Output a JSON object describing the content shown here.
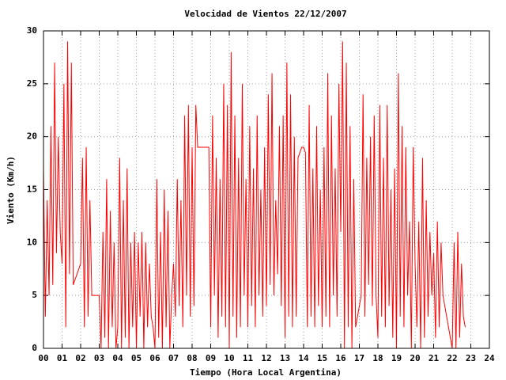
{
  "chart_data": {
    "type": "line",
    "title": "Velocidad de Vientos 22/12/2007",
    "x_label": "Tiempo (Hora Local Argentina)",
    "y_label": "Viento (Km/h)",
    "color": "#ff0000",
    "grid": true,
    "xlim": [
      0,
      24
    ],
    "ylim": [
      0,
      30
    ],
    "xticks": [
      {
        "value": 0,
        "label": "00"
      },
      {
        "value": 1,
        "label": "01"
      },
      {
        "value": 2,
        "label": "02"
      },
      {
        "value": 3,
        "label": "03"
      },
      {
        "value": 4,
        "label": "04"
      },
      {
        "value": 5,
        "label": "05"
      },
      {
        "value": 6,
        "label": "06"
      },
      {
        "value": 7,
        "label": "07"
      },
      {
        "value": 8,
        "label": "08"
      },
      {
        "value": 9,
        "label": "09"
      },
      10,
      11,
      12,
      13,
      14,
      15,
      16,
      17,
      18,
      19,
      20,
      21,
      22,
      23,
      24
    ],
    "yticks": [
      0,
      5,
      10,
      15,
      20,
      25,
      30
    ],
    "x": [
      0,
      0.1,
      0.2,
      0.3,
      0.4,
      0.5,
      0.6,
      0.7,
      0.8,
      0.9,
      1,
      1.1,
      1.2,
      1.3,
      1.4,
      1.5,
      1.6,
      1.7,
      1.8,
      1.9,
      2,
      2.1,
      2.2,
      2.3,
      2.4,
      2.5,
      2.6,
      2.7,
      2.8,
      2.9,
      3,
      3.1,
      3.2,
      3.3,
      3.4,
      3.5,
      3.6,
      3.7,
      3.8,
      3.9,
      4,
      4.1,
      4.2,
      4.3,
      4.4,
      4.5,
      4.6,
      4.7,
      4.8,
      4.9,
      5,
      5.1,
      5.2,
      5.3,
      5.4,
      5.5,
      5.6,
      5.7,
      5.8,
      5.9,
      6,
      6.1,
      6.2,
      6.3,
      6.4,
      6.5,
      6.6,
      6.7,
      6.8,
      6.9,
      7,
      7.1,
      7.2,
      7.3,
      7.4,
      7.5,
      7.6,
      7.7,
      7.8,
      7.9,
      8,
      8.1,
      8.2,
      8.3,
      8.4,
      8.5,
      8.6,
      8.7,
      8.8,
      8.9,
      9,
      9.1,
      9.2,
      9.3,
      9.4,
      9.5,
      9.6,
      9.7,
      9.8,
      9.9,
      10,
      10.1,
      10.2,
      10.3,
      10.4,
      10.5,
      10.6,
      10.7,
      10.8,
      10.9,
      11,
      11.1,
      11.2,
      11.3,
      11.4,
      11.5,
      11.6,
      11.7,
      11.8,
      11.9,
      12,
      12.1,
      12.2,
      12.3,
      12.4,
      12.5,
      12.6,
      12.7,
      12.8,
      12.9,
      13,
      13.1,
      13.2,
      13.3,
      13.4,
      13.5,
      13.6,
      13.7,
      13.8,
      13.9,
      14,
      14.1,
      14.2,
      14.3,
      14.4,
      14.5,
      14.6,
      14.7,
      14.8,
      14.9,
      15,
      15.1,
      15.2,
      15.3,
      15.4,
      15.5,
      15.6,
      15.7,
      15.8,
      15.9,
      16,
      16.1,
      16.2,
      16.3,
      16.4,
      16.5,
      16.6,
      16.7,
      16.8,
      16.9,
      17,
      17.1,
      17.2,
      17.3,
      17.4,
      17.5,
      17.6,
      17.7,
      17.8,
      17.9,
      18,
      18.1,
      18.2,
      18.3,
      18.4,
      18.5,
      18.6,
      18.7,
      18.8,
      18.9,
      19,
      19.1,
      19.2,
      19.3,
      19.4,
      19.5,
      19.6,
      19.7,
      19.8,
      19.9,
      20,
      20.1,
      20.2,
      20.3,
      20.4,
      20.5,
      20.6,
      20.7,
      20.8,
      20.9,
      21,
      21.1,
      21.2,
      21.3,
      21.4,
      21.5,
      21.6,
      21.7,
      21.8,
      21.9,
      22,
      22.1,
      22.2,
      22.3,
      22.4,
      22.5,
      22.6,
      22.7
    ],
    "values": [
      17,
      3,
      14,
      5,
      21,
      6,
      27,
      9,
      20,
      11,
      8,
      25,
      2,
      29,
      7,
      27,
      6,
      6.5,
      7,
      7.5,
      8,
      18,
      2,
      19,
      3,
      14,
      5,
      5,
      5,
      5,
      5,
      0,
      11,
      1,
      16,
      0,
      13,
      2,
      10,
      0,
      2,
      18,
      0,
      14,
      1,
      17,
      0,
      10,
      2,
      11,
      0,
      10,
      3,
      11,
      0,
      10,
      2,
      8,
      3,
      2,
      0,
      16,
      1,
      11,
      0,
      15,
      2,
      13,
      0,
      5,
      8,
      3,
      16,
      4,
      14,
      2,
      22,
      5,
      23,
      3,
      19,
      4,
      23,
      19,
      19,
      19,
      19,
      19,
      19,
      19,
      2,
      22,
      5,
      18,
      1,
      16,
      3,
      25,
      2,
      23,
      0,
      28,
      3,
      22,
      1,
      18,
      2,
      25,
      5,
      16,
      2,
      21,
      4,
      17,
      2,
      22,
      5,
      15,
      3,
      19,
      4,
      24,
      6,
      26,
      5,
      14,
      7,
      21,
      4,
      22,
      1,
      27,
      3,
      24,
      2,
      20,
      3,
      18,
      18.5,
      19,
      19,
      18.5,
      2,
      23,
      3,
      17,
      2,
      21,
      4,
      15,
      2,
      19,
      3,
      26,
      2,
      22,
      5,
      17,
      3,
      25,
      11,
      29,
      0,
      27,
      2,
      21,
      0,
      16,
      2,
      3,
      4,
      5,
      24,
      3,
      18,
      6,
      20,
      4,
      22,
      5,
      1,
      23,
      3,
      18,
      2,
      23,
      4,
      15,
      1,
      17,
      0,
      26,
      3,
      21,
      2,
      19,
      5,
      12,
      0,
      19,
      8,
      2,
      12,
      0,
      18,
      1,
      14,
      3,
      11,
      5,
      9,
      1,
      12,
      2,
      10,
      5,
      4,
      3,
      2,
      1,
      0,
      10,
      0,
      11,
      1,
      8,
      3,
      2
    ]
  }
}
